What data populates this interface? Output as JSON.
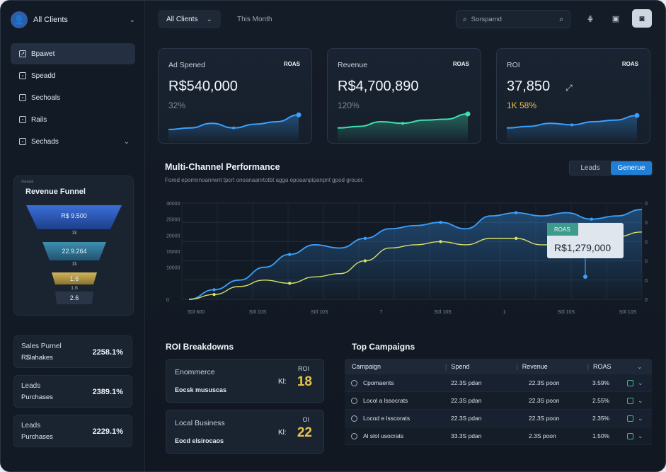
{
  "client": {
    "avatar": "👤",
    "label": "All Clients"
  },
  "nav": {
    "items": [
      {
        "label": "Bpawet",
        "icon": "↗"
      },
      {
        "label": "Speadd",
        "icon": "▫"
      },
      {
        "label": "Sechoals",
        "icon": "▫"
      },
      {
        "label": "Rails",
        "icon": "▫"
      },
      {
        "label": "Sechads",
        "icon": "▫"
      }
    ]
  },
  "funnel": {
    "tiny": "Aaaaa",
    "title": "Revenue Funnel",
    "stages": [
      "R$ 9.500",
      "22.9.264",
      "1.6",
      "2.6"
    ],
    "subs": [
      "1k",
      "1k",
      "1.6"
    ]
  },
  "minis": [
    {
      "l1": "Sales Purnel",
      "l2": "R$lahakes",
      "v": "2258.1%"
    },
    {
      "l1": "Leads",
      "l2": "Purchases",
      "v": "2389.1%"
    },
    {
      "l1": "Leads",
      "l2": "Purchases",
      "v": "2229.1%"
    }
  ],
  "topbar": {
    "filter": "All Clients",
    "period": "This Month",
    "search_placeholder": "Sorspamd"
  },
  "kpis": [
    {
      "label": "Ad Spened",
      "tag": "ROAS",
      "value": "R$540,000",
      "pct": "32%",
      "color": "#3aa0ff",
      "spark": [
        0.25,
        0.3,
        0.45,
        0.3,
        0.42,
        0.5,
        0.72
      ]
    },
    {
      "label": "Revenue",
      "tag": "ROAS",
      "value": "R$4,700,890",
      "pct": "120%",
      "color": "#3fe0b0",
      "spark": [
        0.3,
        0.35,
        0.5,
        0.45,
        0.55,
        0.58,
        0.75
      ]
    },
    {
      "label": "ROI",
      "tag": "ROAS",
      "value": "37,850",
      "value_suffix": "⤢",
      "pct": "1K 58%",
      "color": "#3aa0ff",
      "spark": [
        0.3,
        0.35,
        0.45,
        0.4,
        0.5,
        0.55,
        0.7
      ]
    }
  ],
  "chart_data": {
    "type": "line",
    "title": "Multi-Channel Performance",
    "subtitle": "Fored epomnnoanrwnt tpcrt onoanaanrtotbt agga epoaanpipanpnt gpod grouor.",
    "toggle": [
      "Leads",
      "Generue"
    ],
    "x_ticks": [
      "5Dl 600",
      "S0l 10S",
      "S0l 10S",
      "7",
      "S0l 10S",
      "1",
      "S0l 10S",
      "S0l 10S"
    ],
    "y_ticks": [
      "0",
      "10000",
      "15000",
      "20000",
      "25000",
      "30000"
    ],
    "right_ticks": [
      "0",
      "0",
      "0",
      "0",
      "0",
      "0"
    ],
    "series": [
      {
        "color": "#3aa0ff",
        "values": [
          0,
          3000,
          6000,
          10000,
          14000,
          17000,
          16000,
          19000,
          22000,
          23000,
          24000,
          22000,
          26000,
          27000,
          26000,
          27000,
          25000,
          26000,
          28000
        ]
      },
      {
        "color": "#d8e065",
        "values": [
          0,
          1500,
          4000,
          6000,
          5000,
          7000,
          8000,
          12000,
          16000,
          17000,
          18000,
          17000,
          19000,
          19000,
          17000,
          17000,
          18500,
          19500,
          21000
        ]
      }
    ],
    "tooltip": {
      "tag": "ROAS",
      "value": "R$1,279,000"
    }
  },
  "roi": {
    "title": "ROI Breakdowns",
    "cards": [
      {
        "name": "Enommerce",
        "sub": "Eocsk mususcas",
        "k": "ROI",
        "kk": "Kl:",
        "big": "18"
      },
      {
        "name": "Local Business",
        "sub": "Eocd elsirocaos",
        "k": "OI",
        "kk": "Kl:",
        "big": "22"
      }
    ]
  },
  "campaigns": {
    "title": "Top Campaigns",
    "headers": [
      "Campaign",
      "Spend",
      "Revenue",
      "ROAS"
    ],
    "rows": [
      [
        "Cpomaents",
        "22.3S pdan",
        "22.3S poon",
        "3.59%"
      ],
      [
        "Locol a lssocrats",
        "22.3S pdan",
        "22.3S poon",
        "2.55%"
      ],
      [
        "Locod e lsscorats",
        "22.3S pdan",
        "22.3S poon",
        "2.35%"
      ],
      [
        "Al slol usocrats",
        "33.3S pdan",
        "2.3S poon",
        "1.50%"
      ]
    ]
  }
}
